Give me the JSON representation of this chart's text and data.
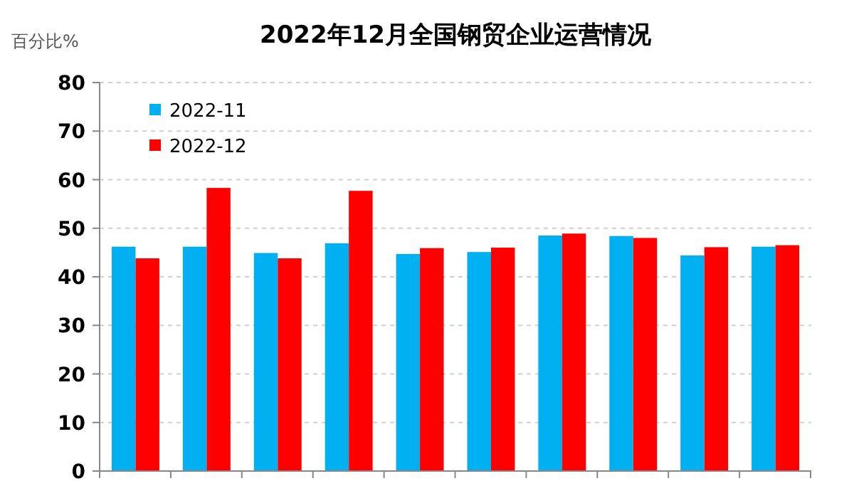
{
  "chart_data": {
    "type": "bar",
    "title": "2022年12月全国钢贸企业运营情况",
    "ylabel": "百分比%",
    "categories": [
      null,
      null,
      null,
      null,
      null,
      null,
      null,
      null,
      null,
      null
    ],
    "series": [
      {
        "name": "2022-11",
        "color": "#00b0f0",
        "values": [
          46.2,
          46.2,
          44.9,
          46.9,
          44.7,
          45.1,
          48.5,
          48.4,
          44.4,
          46.2
        ]
      },
      {
        "name": "2022-12",
        "color": "#ff0000",
        "values": [
          43.8,
          58.3,
          43.8,
          57.7,
          45.9,
          46.0,
          48.9,
          48.0,
          46.1,
          46.5
        ]
      }
    ],
    "ylim": [
      0,
      80
    ],
    "yticks": [
      0,
      10,
      20,
      30,
      40,
      50,
      60,
      70,
      80
    ],
    "grid": "y",
    "legend": "top left"
  }
}
